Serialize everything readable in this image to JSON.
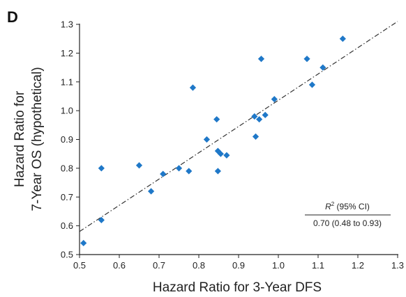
{
  "panel_label": "D",
  "chart_data": {
    "type": "scatter",
    "xlabel": "Hazard Ratio for 3-Year DFS",
    "ylabel_line1": "Hazard Ratio for",
    "ylabel_line2": "7-Year OS (hypothetical)",
    "xlim": [
      0.5,
      1.3
    ],
    "ylim": [
      0.5,
      1.3
    ],
    "xticks": [
      "0.5",
      "0.6",
      "0.7",
      "0.8",
      "0.9",
      "1.0",
      "1.1",
      "1.2",
      "1.3"
    ],
    "yticks": [
      "0.5",
      "0.6",
      "0.7",
      "0.8",
      "0.9",
      "1.0",
      "1.1",
      "1.2",
      "1.3"
    ],
    "grid": false,
    "marker_color": "#1f78c8",
    "fit_line_color": "#333333",
    "fit_line": {
      "x": [
        0.5,
        1.3
      ],
      "y": [
        0.58,
        1.31
      ]
    },
    "points": [
      {
        "x": 0.51,
        "y": 0.54
      },
      {
        "x": 0.555,
        "y": 0.62
      },
      {
        "x": 0.555,
        "y": 0.8
      },
      {
        "x": 0.65,
        "y": 0.81
      },
      {
        "x": 0.68,
        "y": 0.72
      },
      {
        "x": 0.71,
        "y": 0.78
      },
      {
        "x": 0.75,
        "y": 0.8
      },
      {
        "x": 0.775,
        "y": 0.79
      },
      {
        "x": 0.785,
        "y": 1.08
      },
      {
        "x": 0.82,
        "y": 0.9
      },
      {
        "x": 0.845,
        "y": 0.97
      },
      {
        "x": 0.848,
        "y": 0.86
      },
      {
        "x": 0.848,
        "y": 0.79
      },
      {
        "x": 0.855,
        "y": 0.85
      },
      {
        "x": 0.87,
        "y": 0.845
      },
      {
        "x": 0.94,
        "y": 0.98
      },
      {
        "x": 0.943,
        "y": 0.91
      },
      {
        "x": 0.952,
        "y": 0.97
      },
      {
        "x": 0.957,
        "y": 1.18
      },
      {
        "x": 0.967,
        "y": 0.985
      },
      {
        "x": 0.99,
        "y": 1.04
      },
      {
        "x": 1.072,
        "y": 1.18
      },
      {
        "x": 1.085,
        "y": 1.09
      },
      {
        "x": 1.112,
        "y": 1.15
      },
      {
        "x": 1.162,
        "y": 1.25
      }
    ],
    "annotation": {
      "r2_symbol": "R",
      "r2_superscript": "2",
      "r2_suffix": " (95% CI)",
      "ci_text": "0.70 (0.48 to 0.93)"
    }
  }
}
